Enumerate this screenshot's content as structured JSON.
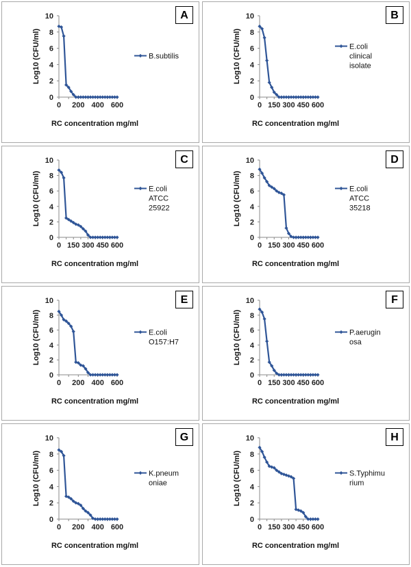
{
  "color": "#2f5597",
  "chart_data": [
    {
      "panel": "A",
      "type": "line",
      "series": [
        {
          "name": "B.subtilis",
          "x": [
            0,
            25,
            50,
            75,
            100,
            125,
            150,
            175,
            200,
            225,
            250,
            275,
            300,
            325,
            350,
            375,
            400,
            425,
            450,
            475,
            500,
            525,
            550,
            575,
            600
          ],
          "y": [
            8.7,
            8.6,
            7.5,
            1.5,
            1.2,
            0.7,
            0.3,
            0,
            0,
            0,
            0,
            0,
            0,
            0,
            0,
            0,
            0,
            0,
            0,
            0,
            0,
            0,
            0,
            0,
            0
          ]
        }
      ],
      "xlabel": "RC concentration mg/ml",
      "ylabel": "Log10 (CFU/ml)",
      "xlim": [
        0,
        600
      ],
      "ylim": [
        0,
        10
      ],
      "xticks": [
        0,
        200,
        400,
        600
      ],
      "yticks": [
        0,
        2,
        4,
        6,
        8,
        10
      ],
      "legend_lines": [
        "B.subtilis"
      ]
    },
    {
      "panel": "B",
      "type": "line",
      "series": [
        {
          "name": "E.coli clinical isolate",
          "x": [
            0,
            25,
            50,
            75,
            100,
            125,
            150,
            175,
            200,
            225,
            250,
            275,
            300,
            325,
            350,
            375,
            400,
            425,
            450,
            475,
            500,
            525,
            550,
            575,
            600
          ],
          "y": [
            8.7,
            8.4,
            7.3,
            4.5,
            1.8,
            1.2,
            0.6,
            0.3,
            0,
            0,
            0,
            0,
            0,
            0,
            0,
            0,
            0,
            0,
            0,
            0,
            0,
            0,
            0,
            0,
            0
          ]
        }
      ],
      "xlabel": "RC concentration mg/ml",
      "ylabel": "Log10 (CFU/ml)",
      "xlim": [
        0,
        600
      ],
      "ylim": [
        0,
        10
      ],
      "xticks": [
        0,
        150,
        300,
        450,
        600
      ],
      "yticks": [
        0,
        2,
        4,
        6,
        8,
        10
      ],
      "legend_lines": [
        "E.coli",
        "clinical",
        "isolate"
      ]
    },
    {
      "panel": "C",
      "type": "line",
      "series": [
        {
          "name": "E.coli ATCC 25922",
          "x": [
            0,
            25,
            50,
            75,
            100,
            125,
            150,
            175,
            200,
            225,
            250,
            275,
            300,
            325,
            350,
            375,
            400,
            425,
            450,
            475,
            500,
            525,
            550,
            575,
            600
          ],
          "y": [
            8.7,
            8.4,
            7.7,
            2.5,
            2.3,
            2.1,
            1.9,
            1.7,
            1.6,
            1.4,
            1.1,
            0.8,
            0.3,
            0,
            0,
            0,
            0,
            0,
            0,
            0,
            0,
            0,
            0,
            0,
            0
          ]
        }
      ],
      "xlabel": "RC concentration mg/ml",
      "ylabel": "Log10 (CFU/ml)",
      "xlim": [
        0,
        600
      ],
      "ylim": [
        0,
        10
      ],
      "xticks": [
        0,
        150,
        300,
        450,
        600
      ],
      "yticks": [
        0,
        2,
        4,
        6,
        8,
        10
      ],
      "legend_lines": [
        "E.coli",
        "ATCC",
        "25922"
      ]
    },
    {
      "panel": "D",
      "type": "line",
      "series": [
        {
          "name": "E.coli ATCC 35218",
          "x": [
            0,
            25,
            50,
            75,
            100,
            125,
            150,
            175,
            200,
            225,
            250,
            275,
            300,
            325,
            350,
            375,
            400,
            425,
            450,
            475,
            500,
            525,
            550,
            575,
            600
          ],
          "y": [
            8.8,
            8.3,
            7.7,
            7.2,
            6.7,
            6.5,
            6.3,
            6.0,
            5.8,
            5.7,
            5.5,
            1.2,
            0.5,
            0.1,
            0,
            0,
            0,
            0,
            0,
            0,
            0,
            0,
            0,
            0,
            0
          ]
        }
      ],
      "xlabel": "RC concentration mg/ml",
      "ylabel": "Log10 (CFU/ml)",
      "xlim": [
        0,
        600
      ],
      "ylim": [
        0,
        10
      ],
      "xticks": [
        0,
        150,
        300,
        450,
        600
      ],
      "yticks": [
        0,
        2,
        4,
        6,
        8,
        10
      ],
      "legend_lines": [
        "E.coli",
        "ATCC",
        "35218"
      ]
    },
    {
      "panel": "E",
      "type": "line",
      "series": [
        {
          "name": "E.coli O157:H7",
          "x": [
            0,
            25,
            50,
            75,
            100,
            125,
            150,
            175,
            200,
            225,
            250,
            275,
            300,
            325,
            350,
            375,
            400,
            425,
            450,
            475,
            500,
            525,
            550,
            575,
            600
          ],
          "y": [
            8.5,
            8.0,
            7.4,
            7.2,
            6.9,
            6.5,
            5.8,
            1.7,
            1.6,
            1.3,
            1.2,
            0.8,
            0.3,
            0,
            0,
            0,
            0,
            0,
            0,
            0,
            0,
            0,
            0,
            0,
            0
          ]
        }
      ],
      "xlabel": "RC concentration mg/ml",
      "ylabel": "Log10 (CFU/ml)",
      "xlim": [
        0,
        600
      ],
      "ylim": [
        0,
        10
      ],
      "xticks": [
        0,
        200,
        400,
        600
      ],
      "yticks": [
        0,
        2,
        4,
        6,
        8,
        10
      ],
      "legend_lines": [
        "E.coli",
        "O157:H7"
      ]
    },
    {
      "panel": "F",
      "type": "line",
      "series": [
        {
          "name": "P.aeruginosa",
          "x": [
            0,
            25,
            50,
            75,
            100,
            125,
            150,
            175,
            200,
            225,
            250,
            275,
            300,
            325,
            350,
            375,
            400,
            425,
            450,
            475,
            500,
            525,
            550,
            575,
            600
          ],
          "y": [
            8.8,
            8.4,
            7.5,
            4.5,
            1.7,
            1.2,
            0.6,
            0.2,
            0,
            0,
            0,
            0,
            0,
            0,
            0,
            0,
            0,
            0,
            0,
            0,
            0,
            0,
            0,
            0,
            0
          ]
        }
      ],
      "xlabel": "RC concentration mg/ml",
      "ylabel": "Log10 (CFU/ml)",
      "xlim": [
        0,
        600
      ],
      "ylim": [
        0,
        10
      ],
      "xticks": [
        0,
        150,
        300,
        450,
        600
      ],
      "yticks": [
        0,
        2,
        4,
        6,
        8,
        10
      ],
      "legend_lines": [
        "P.aerugin",
        "osa"
      ]
    },
    {
      "panel": "G",
      "type": "line",
      "series": [
        {
          "name": "K.pneumoniae",
          "x": [
            0,
            25,
            50,
            75,
            100,
            125,
            150,
            175,
            200,
            225,
            250,
            275,
            300,
            325,
            350,
            375,
            400,
            425,
            450,
            475,
            500,
            525,
            550,
            575,
            600
          ],
          "y": [
            8.5,
            8.3,
            7.8,
            2.8,
            2.7,
            2.5,
            2.2,
            2.0,
            1.9,
            1.7,
            1.3,
            1.0,
            0.8,
            0.5,
            0.1,
            0,
            0,
            0,
            0,
            0,
            0,
            0,
            0,
            0,
            0
          ]
        }
      ],
      "xlabel": "RC concentration mg/ml",
      "ylabel": "Log10 (CFU/ml)",
      "xlim": [
        0,
        600
      ],
      "ylim": [
        0,
        10
      ],
      "xticks": [
        0,
        200,
        400,
        600
      ],
      "yticks": [
        0,
        2,
        4,
        6,
        8,
        10
      ],
      "legend_lines": [
        "K.pneum",
        "oniae"
      ]
    },
    {
      "panel": "H",
      "type": "line",
      "series": [
        {
          "name": "S.Typhimurium",
          "x": [
            0,
            25,
            50,
            75,
            100,
            125,
            150,
            175,
            200,
            225,
            250,
            275,
            300,
            325,
            350,
            375,
            400,
            425,
            450,
            475,
            500,
            525,
            550,
            575,
            600
          ],
          "y": [
            8.8,
            8.3,
            7.6,
            7.0,
            6.5,
            6.4,
            6.3,
            6.0,
            5.8,
            5.6,
            5.5,
            5.4,
            5.3,
            5.2,
            5.0,
            1.2,
            1.1,
            1.0,
            0.8,
            0.3,
            0,
            0,
            0,
            0,
            0
          ]
        }
      ],
      "xlabel": "RC concentration mg/ml",
      "ylabel": "Log10 (CFU/ml)",
      "xlim": [
        0,
        600
      ],
      "ylim": [
        0,
        10
      ],
      "xticks": [
        0,
        150,
        300,
        450,
        600
      ],
      "yticks": [
        0,
        2,
        4,
        6,
        8,
        10
      ],
      "legend_lines": [
        "S.Typhimu",
        "rium"
      ]
    }
  ]
}
